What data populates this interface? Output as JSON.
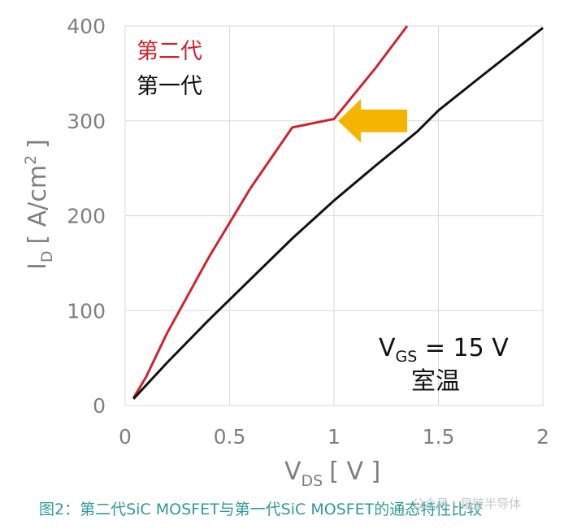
{
  "chart_data": {
    "type": "line",
    "xlim": [
      0,
      2
    ],
    "ylim": [
      0,
      400
    ],
    "xticks": [
      0,
      0.5,
      1,
      1.5,
      2
    ],
    "yticks": [
      0,
      100,
      200,
      300,
      400
    ],
    "xtick_labels": [
      "0",
      "0.5",
      "1",
      "1.5",
      "2"
    ],
    "ytick_labels": [
      "0",
      "100",
      "200",
      "300",
      "400"
    ],
    "xlabel": {
      "main": "V",
      "sub": "DS",
      "unit": "[ V ]"
    },
    "ylabel": {
      "main": "I",
      "sub": "D",
      "unit": "[ A/cm",
      "sup": "2",
      "close": "]"
    },
    "grid": true,
    "series": [
      {
        "name": "第二代",
        "color": "#d0242e",
        "points": [
          [
            0.04,
            8
          ],
          [
            0.1,
            30
          ],
          [
            0.2,
            76
          ],
          [
            0.4,
            156
          ],
          [
            0.6,
            229
          ],
          [
            0.8,
            293
          ],
          [
            1.0,
            302
          ],
          [
            1.2,
            356
          ],
          [
            1.35,
            400
          ]
        ]
      },
      {
        "name": "第一代",
        "color": "#111111",
        "points": [
          [
            0.04,
            7
          ],
          [
            0.2,
            45
          ],
          [
            0.4,
            90
          ],
          [
            0.6,
            133
          ],
          [
            0.8,
            176
          ],
          [
            1.0,
            216
          ],
          [
            1.2,
            253
          ],
          [
            1.4,
            289
          ],
          [
            1.5,
            311
          ],
          [
            1.7,
            346
          ],
          [
            2.0,
            398
          ]
        ]
      }
    ],
    "annotation": {
      "vgs_main": "V",
      "vgs_sub": "GS",
      "vgs_value": " = 15 V",
      "temperature": "室温"
    },
    "arrow": {
      "direction": "left",
      "color": "#f4b400",
      "tip": [
        1.02,
        300
      ],
      "tail_x": 1.35
    }
  },
  "caption": "图2：第二代SiC MOSFET与第一代SiC MOSFET的通态特性比较",
  "watermark": "公众号 · 星链半导体"
}
